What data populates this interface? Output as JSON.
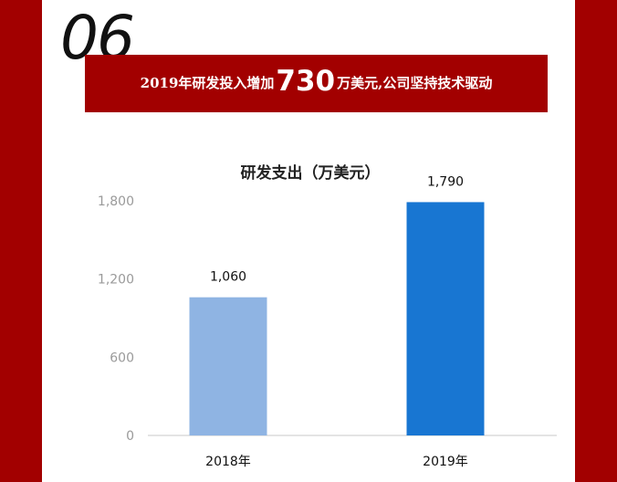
{
  "section_number": "06",
  "headline": {
    "prefix": "2019年研发投入增加",
    "number": "730",
    "suffix": "万美元,公司坚持技术驱动"
  },
  "colors": {
    "frame": "#a20000",
    "bar_2018": "#8fb4e3",
    "bar_2019": "#1876d2",
    "axis_text": "#9a9a9a"
  },
  "chart_data": {
    "type": "bar",
    "title": "研发支出（万美元）",
    "categories": [
      "2018年",
      "2019年"
    ],
    "values": [
      1060,
      1790
    ],
    "data_labels": [
      "1,060",
      "1,790"
    ],
    "y_ticks": [
      0,
      600,
      1200,
      1800
    ],
    "y_tick_labels": [
      "0",
      "600",
      "1,200",
      "1,800"
    ],
    "ylim": [
      0,
      1800
    ],
    "grid": false,
    "legend": "none"
  }
}
